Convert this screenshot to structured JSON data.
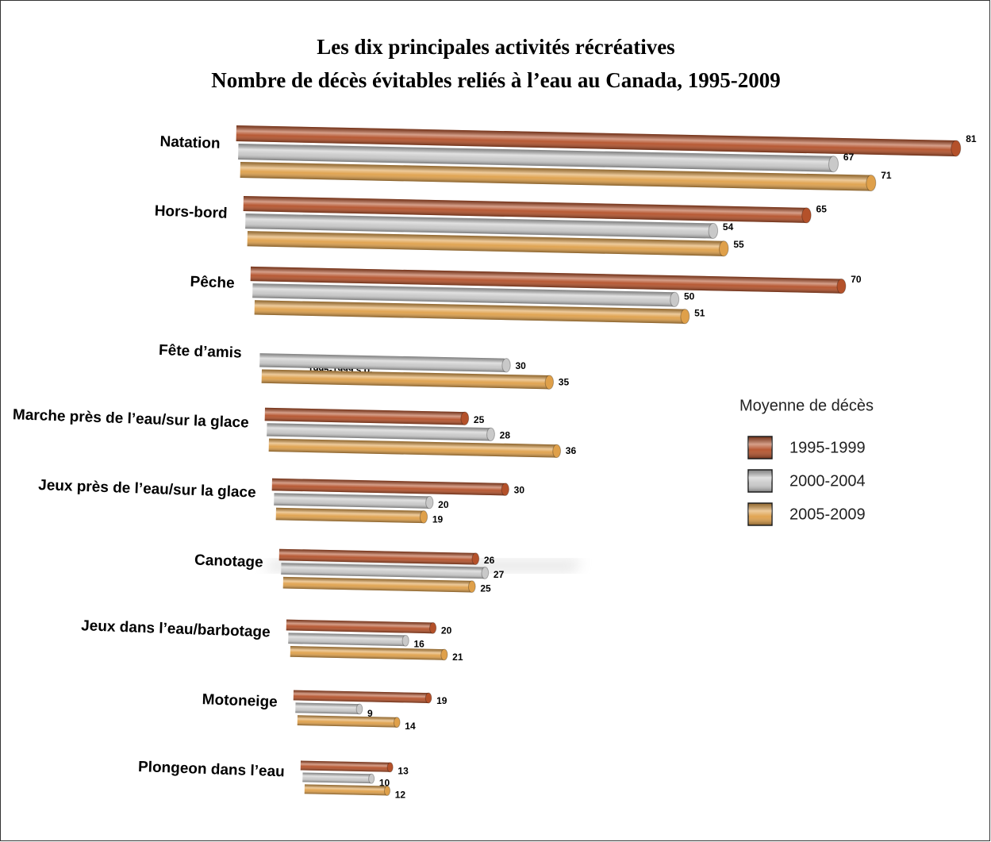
{
  "chart_data": {
    "type": "bar",
    "orientation": "horizontal",
    "title": "Les dix principales activités récréatives",
    "subtitle": "Nombre de décès évitables reliés à l’eau au Canada, 1995-2009",
    "categories": [
      "Natation",
      "Hors-bord",
      "Pêche",
      "Fête d’amis",
      "Marche près de l’eau/sur la glace",
      "Jeux près de l’eau/sur la glace",
      "Canotage",
      "Jeux dans l’eau/barbotage",
      "Motoneige",
      "Plongeon dans l’eau"
    ],
    "series": [
      {
        "name": "1995-1999",
        "color": "#b4512a",
        "values": [
          81,
          65,
          70,
          null,
          25,
          30,
          26,
          20,
          19,
          13
        ]
      },
      {
        "name": "2000-2004",
        "color": "#c9c9c9",
        "values": [
          67,
          54,
          50,
          30,
          28,
          20,
          27,
          16,
          9,
          10
        ]
      },
      {
        "name": "2005-2009",
        "color": "#dfa04a",
        "values": [
          71,
          55,
          51,
          35,
          36,
          19,
          25,
          21,
          14,
          12
        ]
      }
    ],
    "annotation": "1995-1999 s.o.",
    "legend_title": "Moyenne de décès",
    "legend": "right"
  }
}
